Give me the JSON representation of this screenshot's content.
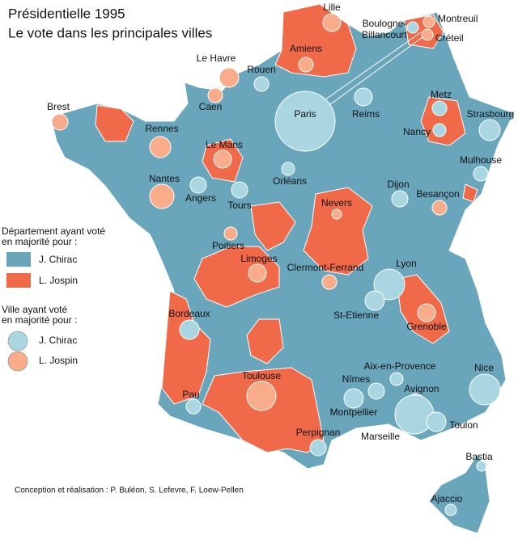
{
  "title": [
    "Présidentielle 1995",
    "Le vote dans les principales villes"
  ],
  "legend_departments": {
    "title": [
      "Département ayant voté",
      "en majorité pour :"
    ],
    "items": [
      {
        "label": "J. Chirac",
        "color": "#69a6bb"
      },
      {
        "label": "L. Jospin",
        "color": "#f06a4a"
      }
    ]
  },
  "legend_cities": {
    "title": [
      "Ville ayant voté",
      "en majorité pour :"
    ],
    "items": [
      {
        "label": "J. Chirac",
        "color": "#a9d6e0"
      },
      {
        "label": "L. Jospin",
        "color": "#f8ac8a"
      }
    ]
  },
  "cities": [
    {
      "label": [
        "Lille"
      ],
      "vote": "L. Jospin"
    },
    {
      "label": [
        "Boulogne-",
        "Billancourt"
      ],
      "vote": "J. Chirac"
    },
    {
      "label": [
        "Montreuil"
      ],
      "vote": "L. Jospin"
    },
    {
      "label": [
        "Créteil"
      ],
      "vote": "L. Jospin"
    },
    {
      "label": [
        "Le Havre"
      ],
      "vote": "L. Jospin"
    },
    {
      "label": [
        "Amiens"
      ],
      "vote": "L. Jospin"
    },
    {
      "label": [
        "Rouen"
      ],
      "vote": "J. Chirac"
    },
    {
      "label": [
        "Caen"
      ],
      "vote": "L. Jospin"
    },
    {
      "label": [
        "Paris"
      ],
      "vote": "J. Chirac"
    },
    {
      "label": [
        "Reims"
      ],
      "vote": "J. Chirac"
    },
    {
      "label": [
        "Metz"
      ],
      "vote": "J. Chirac"
    },
    {
      "label": [
        "Strasbourg"
      ],
      "vote": "J. Chirac"
    },
    {
      "label": [
        "Nancy"
      ],
      "vote": "J. Chirac"
    },
    {
      "label": [
        "Brest"
      ],
      "vote": "L. Jospin"
    },
    {
      "label": [
        "Rennes"
      ],
      "vote": "L. Jospin"
    },
    {
      "label": [
        "Le Mans"
      ],
      "vote": "L. Jospin"
    },
    {
      "label": [
        "Mulhouse"
      ],
      "vote": "J. Chirac"
    },
    {
      "label": [
        "Orléans"
      ],
      "vote": "J. Chirac"
    },
    {
      "label": [
        "Nantes"
      ],
      "vote": "L. Jospin"
    },
    {
      "label": [
        "Angers"
      ],
      "vote": "J. Chirac"
    },
    {
      "label": [
        "Tours"
      ],
      "vote": "J. Chirac"
    },
    {
      "label": [
        "Dijon"
      ],
      "vote": "J. Chirac"
    },
    {
      "label": [
        "Besançon"
      ],
      "vote": "L. Jospin"
    },
    {
      "label": [
        "Nevers"
      ],
      "vote": "L. Jospin"
    },
    {
      "label": [
        "Poitiers"
      ],
      "vote": "L. Jospin"
    },
    {
      "label": [
        "Limoges"
      ],
      "vote": "L. Jospin"
    },
    {
      "label": [
        "Clermont-Ferrand"
      ],
      "vote": "L. Jospin"
    },
    {
      "label": [
        "Lyon"
      ],
      "vote": "J. Chirac"
    },
    {
      "label": [
        "St-Etienne"
      ],
      "vote": "J. Chirac"
    },
    {
      "label": [
        "Grenoble"
      ],
      "vote": "L. Jospin"
    },
    {
      "label": [
        "Bordeaux"
      ],
      "vote": "J. Chirac"
    },
    {
      "label": [
        "Nice"
      ],
      "vote": "J. Chirac"
    },
    {
      "label": [
        "Aix-en-Provence"
      ],
      "vote": "J. Chirac"
    },
    {
      "label": [
        "Nîmes"
      ],
      "vote": "J. Chirac"
    },
    {
      "label": [
        "Avignon"
      ],
      "vote": "J. Chirac"
    },
    {
      "label": [
        "Toulouse"
      ],
      "vote": "L. Jospin"
    },
    {
      "label": [
        "Montpellier"
      ],
      "vote": "J. Chirac"
    },
    {
      "label": [
        "Pau"
      ],
      "vote": "J. Chirac"
    },
    {
      "label": [
        "Marseille"
      ],
      "vote": "J. Chirac"
    },
    {
      "label": [
        "Toulon"
      ],
      "vote": "J. Chirac"
    },
    {
      "label": [
        "Perpignan"
      ],
      "vote": "J. Chirac"
    },
    {
      "label": [
        "Bastia"
      ],
      "vote": "J. Chirac"
    },
    {
      "label": [
        "Ajaccio"
      ],
      "vote": "J. Chirac"
    }
  ],
  "credit": "Conception et réalisation : P. Buléon, S. Lefevre, F. Loew-Pellen"
}
